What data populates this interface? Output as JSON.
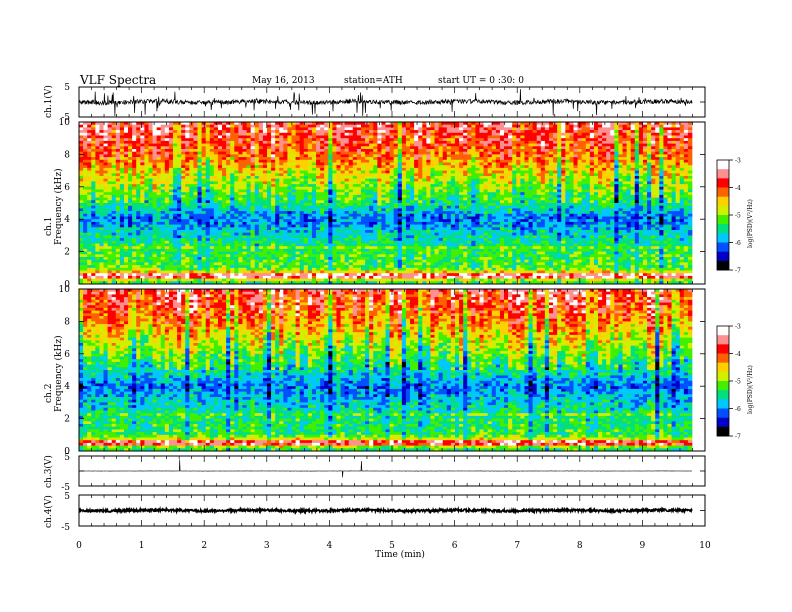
{
  "header": {
    "title": "VLF  Spectra",
    "date": "May 16, 2013",
    "station": "station=ATH",
    "start": "start  UT  =   0  :30: 0"
  },
  "chart_data": [
    {
      "type": "line",
      "panel": "ch1-waveform",
      "ylabel": "ch.1(V)",
      "ylim": [
        -5,
        5
      ],
      "yticks": [
        "5",
        "-5"
      ],
      "xlim": [
        0,
        10
      ],
      "series_color": "#000000",
      "baseline_level": 0,
      "description_values": {
        "typical_amplitude": 1.2
      }
    },
    {
      "type": "heatmap",
      "panel": "ch1-spectrogram",
      "ylabel": "Frequency  (kHz)",
      "ylabel_channel": "ch.1",
      "ylim": [
        0,
        10
      ],
      "yticks": [
        "0",
        "2",
        "4",
        "6",
        "8",
        "10"
      ],
      "xlim": [
        0,
        9.8
      ],
      "colorbar": {
        "label": "log(PSD)(V²/Hz)",
        "range": [
          -7,
          -3
        ],
        "ticks": [
          "-3",
          "-4",
          "-5",
          "-6",
          "-7"
        ],
        "colors": [
          "#000000",
          "#0000c8",
          "#0050ff",
          "#00c8ff",
          "#00e080",
          "#40f000",
          "#d0f000",
          "#ffd000",
          "#ff6000",
          "#ff0000",
          "#ff9090",
          "#ffffff"
        ]
      },
      "frequency_profile": [
        {
          "f": 10,
          "v": -3.6
        },
        {
          "f": 9,
          "v": -3.8
        },
        {
          "f": 8,
          "v": -4.1
        },
        {
          "f": 7,
          "v": -4.6
        },
        {
          "f": 6,
          "v": -5.0
        },
        {
          "f": 5,
          "v": -5.4
        },
        {
          "f": 4,
          "v": -6.1
        },
        {
          "f": 3,
          "v": -5.6
        },
        {
          "f": 2,
          "v": -5.3
        },
        {
          "f": 1,
          "v": -5.2
        },
        {
          "f": 0.5,
          "v": -4.0
        },
        {
          "f": 0,
          "v": -5.5
        }
      ]
    },
    {
      "type": "heatmap",
      "panel": "ch2-spectrogram",
      "ylabel": "Frequency  (kHz)",
      "ylabel_channel": "ch.2",
      "ylim": [
        0,
        10
      ],
      "yticks": [
        "0",
        "2",
        "4",
        "6",
        "8",
        "10"
      ],
      "xlim": [
        0,
        9.8
      ],
      "colorbar": {
        "label": "log(PSD)(V²/Hz)",
        "range": [
          -7,
          -3
        ],
        "ticks": [
          "-3",
          "-4",
          "-5",
          "-6",
          "-7"
        ],
        "colors": [
          "#000000",
          "#0000c8",
          "#0050ff",
          "#00c8ff",
          "#00e080",
          "#40f000",
          "#d0f000",
          "#ffd000",
          "#ff6000",
          "#ff0000",
          "#ff9090",
          "#ffffff"
        ]
      },
      "frequency_profile": [
        {
          "f": 10,
          "v": -3.7
        },
        {
          "f": 9,
          "v": -3.9
        },
        {
          "f": 8,
          "v": -4.2
        },
        {
          "f": 7,
          "v": -4.7
        },
        {
          "f": 6,
          "v": -5.1
        },
        {
          "f": 5,
          "v": -5.5
        },
        {
          "f": 4,
          "v": -6.1
        },
        {
          "f": 3,
          "v": -5.7
        },
        {
          "f": 2,
          "v": -5.4
        },
        {
          "f": 1,
          "v": -5.3
        },
        {
          "f": 0.5,
          "v": -4.2
        },
        {
          "f": 0,
          "v": -5.6
        }
      ]
    },
    {
      "type": "line",
      "panel": "ch3-waveform",
      "ylabel": "ch.3(V)",
      "ylim": [
        -5,
        5
      ],
      "yticks": [
        "5",
        "-5"
      ],
      "xlim": [
        0,
        10
      ],
      "baseline_level": 0
    },
    {
      "type": "line",
      "panel": "ch4-waveform",
      "ylabel": "ch.4(V)",
      "ylim": [
        -5,
        5
      ],
      "yticks": [
        "5",
        "-5"
      ],
      "xlim": [
        0,
        10
      ],
      "baseline_level": 0
    }
  ],
  "xaxis": {
    "label": "Time  (min)",
    "ticks": [
      "0",
      "1",
      "2",
      "3",
      "4",
      "5",
      "6",
      "7",
      "8",
      "9",
      "10"
    ]
  }
}
